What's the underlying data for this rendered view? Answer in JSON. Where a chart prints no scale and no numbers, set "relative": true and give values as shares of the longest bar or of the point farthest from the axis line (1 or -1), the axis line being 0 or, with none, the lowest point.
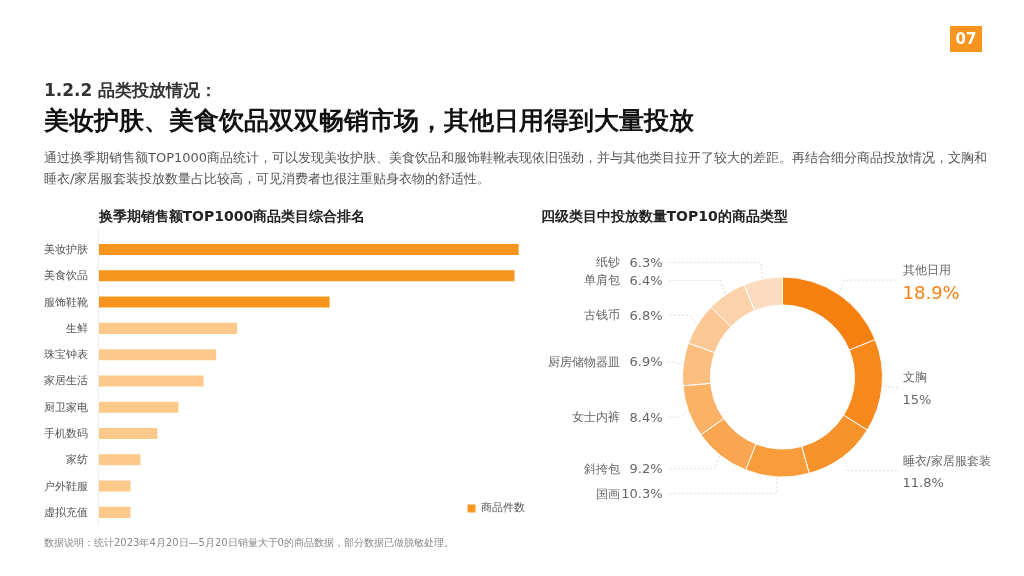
{
  "chart_data": [
    {
      "type": "bar",
      "orientation": "horizontal",
      "relative": true,
      "title": "换季期销售额TOP1000商品类目综合排名",
      "categories": [
        "美妆护肤",
        "美食饮品",
        "服饰鞋靴",
        "生鲜",
        "珠宝钟表",
        "家居生活",
        "厨卫家电",
        "手机数码",
        "家纺",
        "户外鞋服",
        "虚拟充值"
      ],
      "series": [
        {
          "name": "商品件数",
          "values": [
            1,
            0.99,
            0.55,
            0.33,
            0.28,
            0.25,
            0.19,
            0.14,
            0.1,
            0.076,
            0.076
          ]
        }
      ],
      "colors": [
        "#f8951f",
        "#f8951f",
        "#f8951f",
        "#fcc98a",
        "#fcc98a",
        "#fcc98a",
        "#fcc98a",
        "#fcc98a",
        "#fcc98a",
        "#fcc98a",
        "#fcc98a"
      ],
      "legend": "bottom right",
      "grid": false,
      "annotations": [
        "1.2.2 品类投放情况：",
        "美妆护肤、美食饮品双双畅销市场，其他日用得到大量投放",
        "通过换季期销售额TOP1000商品统计，可以发现美妆护肤、美食饮品和服饰鞋靴表现依旧强劲，并与其他类目拉开了较大的差距。再结合细分商品投放情况，文胸和睡衣/家居服套装投放数量占比较高，可见消费者也很注重贴身衣物的舒适性。",
        "数据说明：统计2023年4月20日—5月20日销量大于0的商品数据，部分数据已做脱敏处理。",
        "07"
      ]
    },
    {
      "type": "donut",
      "title": "四级类目中投放数量TOP10的商品类型",
      "categories": [
        "其他日用",
        "文胸",
        "睡衣/家居服套装",
        "国画",
        "斜挎包",
        "女士内裤",
        "厨房储物器皿",
        "古钱币",
        "单肩包",
        "纸钞"
      ],
      "values": [
        18.9,
        15,
        11.8,
        10.3,
        9.2,
        8.4,
        6.9,
        6.8,
        6.4,
        6.3
      ],
      "colors": [
        "#f57f0f",
        "#f7891c",
        "#f8922a",
        "#f99c3b",
        "#faa650",
        "#fbb266",
        "#fbbe7e",
        "#fcc895",
        "#fcd2aa",
        "#fcdcc0"
      ],
      "value_labels": [
        "18.9%",
        "15%",
        "11.8%",
        "10.3%",
        "9.2%",
        "8.4%",
        "6.9%",
        "6.8%",
        "6.4%",
        "6.3%"
      ]
    }
  ]
}
